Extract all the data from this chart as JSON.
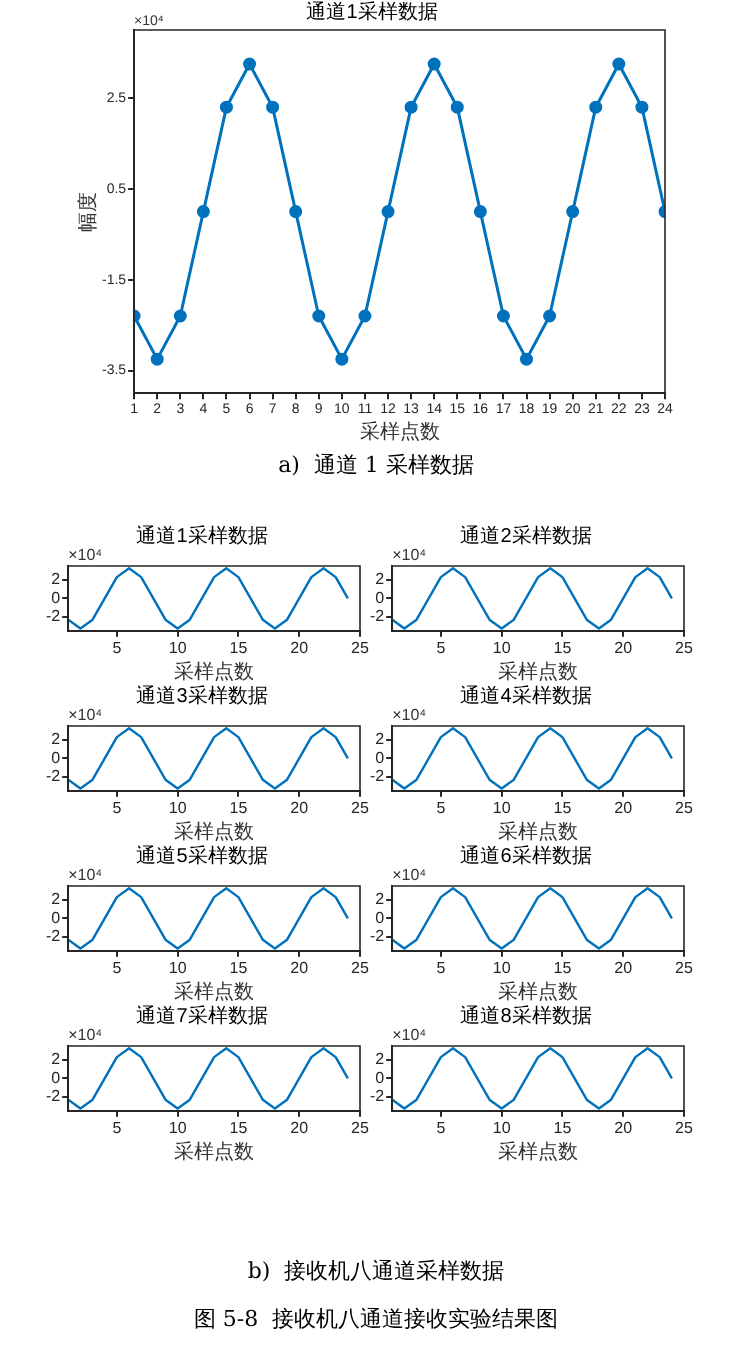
{
  "chart_data": [
    {
      "type": "line",
      "title": "通道1采样数据",
      "xlabel": "采样点数",
      "ylabel": "幅度",
      "x": [
        1,
        2,
        3,
        4,
        5,
        6,
        7,
        8,
        9,
        10,
        11,
        12,
        13,
        14,
        15,
        16,
        17,
        18,
        19,
        20,
        21,
        22,
        23,
        24
      ],
      "series": [
        {
          "color": "#0072bd",
          "values": [
            -2.3,
            -3.25,
            -2.3,
            0,
            2.3,
            3.25,
            2.3,
            0,
            -2.3,
            -3.25,
            -2.3,
            0,
            2.3,
            3.25,
            2.3,
            0,
            -2.3,
            -3.25,
            -2.3,
            0,
            2.3,
            3.25,
            2.3,
            0
          ]
        }
      ],
      "xlim": [
        1,
        24
      ],
      "xticks": [
        1,
        2,
        3,
        4,
        5,
        6,
        7,
        8,
        9,
        10,
        11,
        12,
        13,
        14,
        15,
        16,
        17,
        18,
        19,
        20,
        21,
        22,
        23,
        24
      ],
      "ylim": [
        -4,
        4
      ],
      "yticks": [
        -3.5,
        -1.5,
        0.5,
        2.5
      ],
      "marker": "circle",
      "grid": false,
      "legend": false,
      "annotations": [
        "×10⁴",
        "a)  通道 1 采样数据"
      ]
    },
    {
      "type": "line",
      "title": "通道1采样数据",
      "xlabel": "采样点数",
      "x": [
        1,
        2,
        3,
        4,
        5,
        6,
        7,
        8,
        9,
        10,
        11,
        12,
        13,
        14,
        15,
        16,
        17,
        18,
        19,
        20,
        21,
        22,
        23,
        24
      ],
      "series": [
        {
          "color": "#0072bd",
          "values": [
            -2.3,
            -3.25,
            -2.3,
            0,
            2.3,
            3.25,
            2.3,
            0,
            -2.3,
            -3.25,
            -2.3,
            0,
            2.3,
            3.25,
            2.3,
            0,
            -2.3,
            -3.25,
            -2.3,
            0,
            2.3,
            3.25,
            2.3,
            0
          ]
        }
      ],
      "xlim": [
        1,
        25
      ],
      "xticks": [
        5,
        10,
        15,
        20,
        25
      ],
      "ylim": [
        -3.5,
        3.5
      ],
      "yticks": [
        -2,
        0,
        2
      ],
      "marker": "none",
      "grid": false,
      "legend": false,
      "annotations": [
        "×10⁴"
      ]
    },
    {
      "type": "line",
      "title": "通道2采样数据",
      "xlabel": "采样点数",
      "x": [
        1,
        2,
        3,
        4,
        5,
        6,
        7,
        8,
        9,
        10,
        11,
        12,
        13,
        14,
        15,
        16,
        17,
        18,
        19,
        20,
        21,
        22,
        23,
        24
      ],
      "series": [
        {
          "color": "#0072bd",
          "values": [
            -2.3,
            -3.25,
            -2.3,
            0,
            2.3,
            3.25,
            2.3,
            0,
            -2.3,
            -3.25,
            -2.3,
            0,
            2.3,
            3.25,
            2.3,
            0,
            -2.3,
            -3.25,
            -2.3,
            0,
            2.3,
            3.25,
            2.3,
            0
          ]
        }
      ],
      "xlim": [
        1,
        25
      ],
      "xticks": [
        5,
        10,
        15,
        20,
        25
      ],
      "ylim": [
        -3.5,
        3.5
      ],
      "yticks": [
        -2,
        0,
        2
      ],
      "marker": "none",
      "grid": false,
      "legend": false,
      "annotations": [
        "×10⁴"
      ]
    },
    {
      "type": "line",
      "title": "通道3采样数据",
      "xlabel": "采样点数",
      "x": [
        1,
        2,
        3,
        4,
        5,
        6,
        7,
        8,
        9,
        10,
        11,
        12,
        13,
        14,
        15,
        16,
        17,
        18,
        19,
        20,
        21,
        22,
        23,
        24
      ],
      "series": [
        {
          "color": "#0072bd",
          "values": [
            -2.3,
            -3.25,
            -2.3,
            0,
            2.3,
            3.25,
            2.3,
            0,
            -2.3,
            -3.25,
            -2.3,
            0,
            2.3,
            3.25,
            2.3,
            0,
            -2.3,
            -3.25,
            -2.3,
            0,
            2.3,
            3.25,
            2.3,
            0
          ]
        }
      ],
      "xlim": [
        1,
        25
      ],
      "xticks": [
        5,
        10,
        15,
        20,
        25
      ],
      "ylim": [
        -3.5,
        3.5
      ],
      "yticks": [
        -2,
        0,
        2
      ],
      "marker": "none",
      "grid": false,
      "legend": false,
      "annotations": [
        "×10⁴"
      ]
    },
    {
      "type": "line",
      "title": "通道4采样数据",
      "xlabel": "采样点数",
      "x": [
        1,
        2,
        3,
        4,
        5,
        6,
        7,
        8,
        9,
        10,
        11,
        12,
        13,
        14,
        15,
        16,
        17,
        18,
        19,
        20,
        21,
        22,
        23,
        24
      ],
      "series": [
        {
          "color": "#0072bd",
          "values": [
            -2.3,
            -3.25,
            -2.3,
            0,
            2.3,
            3.25,
            2.3,
            0,
            -2.3,
            -3.25,
            -2.3,
            0,
            2.3,
            3.25,
            2.3,
            0,
            -2.3,
            -3.25,
            -2.3,
            0,
            2.3,
            3.25,
            2.3,
            0
          ]
        }
      ],
      "xlim": [
        1,
        25
      ],
      "xticks": [
        5,
        10,
        15,
        20,
        25
      ],
      "ylim": [
        -3.5,
        3.5
      ],
      "yticks": [
        -2,
        0,
        2
      ],
      "marker": "none",
      "grid": false,
      "legend": false,
      "annotations": [
        "×10⁴"
      ]
    },
    {
      "type": "line",
      "title": "通道5采样数据",
      "xlabel": "采样点数",
      "x": [
        1,
        2,
        3,
        4,
        5,
        6,
        7,
        8,
        9,
        10,
        11,
        12,
        13,
        14,
        15,
        16,
        17,
        18,
        19,
        20,
        21,
        22,
        23,
        24
      ],
      "series": [
        {
          "color": "#0072bd",
          "values": [
            -2.3,
            -3.25,
            -2.3,
            0,
            2.3,
            3.25,
            2.3,
            0,
            -2.3,
            -3.25,
            -2.3,
            0,
            2.3,
            3.25,
            2.3,
            0,
            -2.3,
            -3.25,
            -2.3,
            0,
            2.3,
            3.25,
            2.3,
            0
          ]
        }
      ],
      "xlim": [
        1,
        25
      ],
      "xticks": [
        5,
        10,
        15,
        20,
        25
      ],
      "ylim": [
        -3.5,
        3.5
      ],
      "yticks": [
        -2,
        0,
        2
      ],
      "marker": "none",
      "grid": false,
      "legend": false,
      "annotations": [
        "×10⁴"
      ]
    },
    {
      "type": "line",
      "title": "通道6采样数据",
      "xlabel": "采样点数",
      "x": [
        1,
        2,
        3,
        4,
        5,
        6,
        7,
        8,
        9,
        10,
        11,
        12,
        13,
        14,
        15,
        16,
        17,
        18,
        19,
        20,
        21,
        22,
        23,
        24
      ],
      "series": [
        {
          "color": "#0072bd",
          "values": [
            -2.3,
            -3.25,
            -2.3,
            0,
            2.3,
            3.25,
            2.3,
            0,
            -2.3,
            -3.25,
            -2.3,
            0,
            2.3,
            3.25,
            2.3,
            0,
            -2.3,
            -3.25,
            -2.3,
            0,
            2.3,
            3.25,
            2.3,
            0
          ]
        }
      ],
      "xlim": [
        1,
        25
      ],
      "xticks": [
        5,
        10,
        15,
        20,
        25
      ],
      "ylim": [
        -3.5,
        3.5
      ],
      "yticks": [
        -2,
        0,
        2
      ],
      "marker": "none",
      "grid": false,
      "legend": false,
      "annotations": [
        "×10⁴"
      ]
    },
    {
      "type": "line",
      "title": "通道7采样数据",
      "xlabel": "采样点数",
      "x": [
        1,
        2,
        3,
        4,
        5,
        6,
        7,
        8,
        9,
        10,
        11,
        12,
        13,
        14,
        15,
        16,
        17,
        18,
        19,
        20,
        21,
        22,
        23,
        24
      ],
      "series": [
        {
          "color": "#0072bd",
          "values": [
            -2.3,
            -3.25,
            -2.3,
            0,
            2.3,
            3.25,
            2.3,
            0,
            -2.3,
            -3.25,
            -2.3,
            0,
            2.3,
            3.25,
            2.3,
            0,
            -2.3,
            -3.25,
            -2.3,
            0,
            2.3,
            3.25,
            2.3,
            0
          ]
        }
      ],
      "xlim": [
        1,
        25
      ],
      "xticks": [
        5,
        10,
        15,
        20,
        25
      ],
      "ylim": [
        -3.5,
        3.5
      ],
      "yticks": [
        -2,
        0,
        2
      ],
      "marker": "none",
      "grid": false,
      "legend": false,
      "annotations": [
        "×10⁴"
      ]
    },
    {
      "type": "line",
      "title": "通道8采样数据",
      "xlabel": "采样点数",
      "x": [
        1,
        2,
        3,
        4,
        5,
        6,
        7,
        8,
        9,
        10,
        11,
        12,
        13,
        14,
        15,
        16,
        17,
        18,
        19,
        20,
        21,
        22,
        23,
        24
      ],
      "series": [
        {
          "color": "#0072bd",
          "values": [
            -2.3,
            -3.25,
            -2.3,
            0,
            2.3,
            3.25,
            2.3,
            0,
            -2.3,
            -3.25,
            -2.3,
            0,
            2.3,
            3.25,
            2.3,
            0,
            -2.3,
            -3.25,
            -2.3,
            0,
            2.3,
            3.25,
            2.3,
            0
          ]
        }
      ],
      "xlim": [
        1,
        25
      ],
      "xticks": [
        5,
        10,
        15,
        20,
        25
      ],
      "ylim": [
        -3.5,
        3.5
      ],
      "yticks": [
        -2,
        0,
        2
      ],
      "marker": "none",
      "grid": false,
      "legend": false,
      "annotations": [
        "×10⁴",
        "b)  接收机八通道采样数据",
        "图 5-8  接收机八通道接收实验结果图"
      ]
    }
  ]
}
